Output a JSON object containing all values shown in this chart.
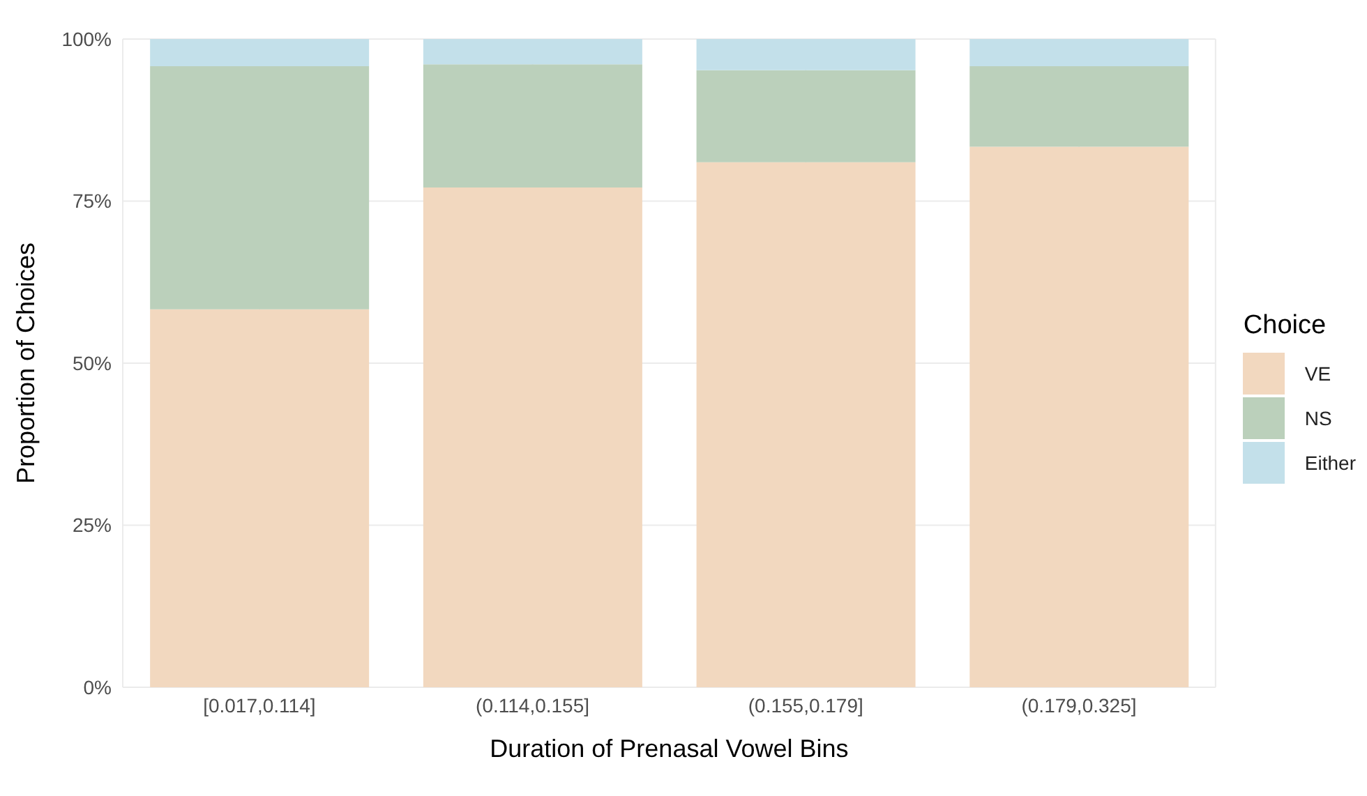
{
  "chart_data": {
    "type": "bar",
    "stacked": true,
    "xlabel": "Duration of Prenasal Vowel Bins",
    "ylabel": "Proportion of Choices",
    "legend_title": "Choice",
    "legend": "right",
    "categories": [
      "[0.017,0.114]",
      "(0.114,0.155]",
      "(0.155,0.179]",
      "(0.179,0.325]"
    ],
    "series": [
      {
        "name": "VE",
        "color": "#f2d8bf",
        "values": [
          58.3,
          77.1,
          81.0,
          83.4
        ]
      },
      {
        "name": "NS",
        "color": "#bbd0bb",
        "values": [
          37.5,
          19.0,
          14.2,
          12.4
        ]
      },
      {
        "name": "Either",
        "color": "#c3e0ea",
        "values": [
          4.2,
          3.9,
          4.8,
          4.2
        ]
      }
    ],
    "ylim": [
      0,
      100
    ],
    "yticks": [
      {
        "value": 0,
        "label": "0%"
      },
      {
        "value": 25,
        "label": "25%"
      },
      {
        "value": 50,
        "label": "50%"
      },
      {
        "value": 75,
        "label": "75%"
      },
      {
        "value": 100,
        "label": "100%"
      }
    ],
    "grid": true
  }
}
